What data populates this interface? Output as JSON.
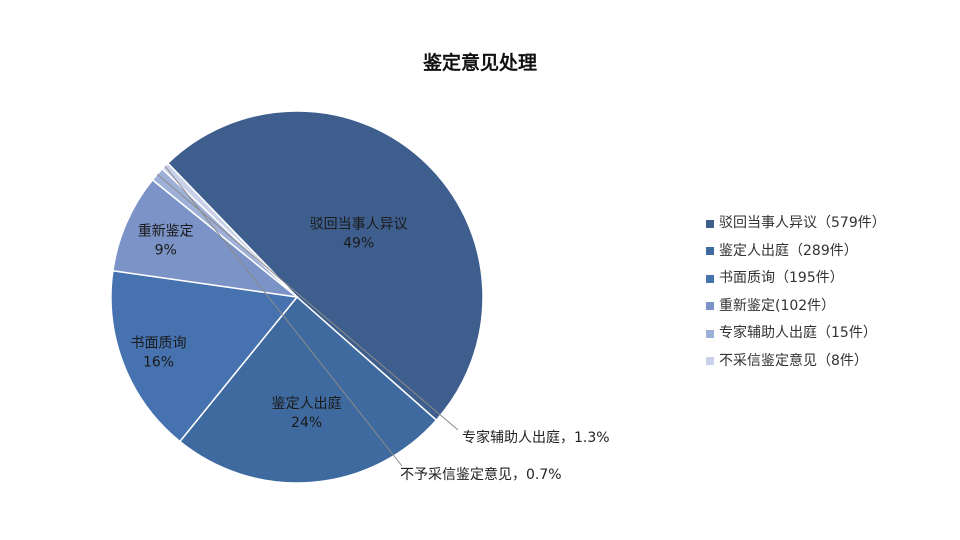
{
  "chart_data": {
    "type": "pie",
    "title": "鉴定意见处理",
    "slices": [
      {
        "label": "驳回当事人异议",
        "percent_label": "49%",
        "value": 579,
        "color": "#3e5f8e"
      },
      {
        "label": "鉴定人出庭",
        "percent_label": "24%",
        "value": 289,
        "color": "#3f6aa0"
      },
      {
        "label": "书面质询",
        "percent_label": "16%",
        "value": 195,
        "color": "#4673b0"
      },
      {
        "label": "重新鉴定",
        "percent_label": "9%",
        "value": 102,
        "color": "#7b93c6"
      },
      {
        "label": "专家辅助人出庭",
        "percent_label": "1.3%",
        "value": 15,
        "color": "#9fb0d8"
      },
      {
        "label": "不予采信鉴定意见",
        "percent_label": "0.7%",
        "value": 8,
        "color": "#c9d2ea"
      }
    ],
    "outside_labels": [
      "专家辅助人出庭，1.3%",
      "不予采信鉴定意见，0.7%"
    ],
    "legend": {
      "position": "right",
      "entries": [
        "驳回当事人异议（579件）",
        "鉴定人出庭（289件）",
        "书面质询（195件）",
        "重新鉴定(102件）",
        "专家辅助人出庭（15件）",
        "不采信鉴定意见（8件）"
      ]
    }
  }
}
